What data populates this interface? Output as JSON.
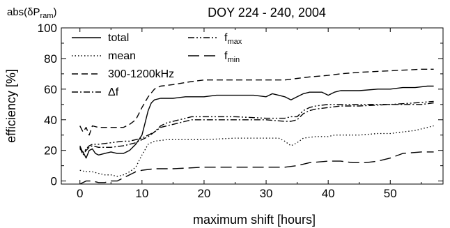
{
  "chart_data": {
    "type": "line",
    "title": "DOY 224 - 240, 2004",
    "corner_label": "abs(δP",
    "corner_label_sub": "ram",
    "corner_label_end": ")",
    "xlabel": "maximum shift [hours]",
    "ylabel": "efficiency [%]",
    "xlim": [
      -3,
      58.5
    ],
    "ylim": [
      -2,
      100
    ],
    "xticks": [
      0,
      10,
      20,
      30,
      40,
      50
    ],
    "yticks": [
      0,
      20,
      40,
      60,
      80,
      100
    ],
    "grid": false,
    "legend_position": "top-left",
    "series": [
      {
        "name": "total",
        "dash": "solid",
        "legend_label": "total",
        "legend_sub": "",
        "points": [
          [
            0,
            21
          ],
          [
            0.5,
            19
          ],
          [
            1,
            15
          ],
          [
            1.5,
            20
          ],
          [
            2,
            21
          ],
          [
            2.5,
            18
          ],
          [
            3,
            17
          ],
          [
            4,
            18
          ],
          [
            5,
            19
          ],
          [
            6,
            18
          ],
          [
            7,
            18
          ],
          [
            8,
            20
          ],
          [
            9,
            24
          ],
          [
            10,
            30
          ],
          [
            10.5,
            38
          ],
          [
            11,
            46
          ],
          [
            11.5,
            51
          ],
          [
            12,
            53
          ],
          [
            13,
            54
          ],
          [
            15,
            54
          ],
          [
            17,
            55
          ],
          [
            20,
            55
          ],
          [
            22,
            56
          ],
          [
            25,
            56
          ],
          [
            28,
            56
          ],
          [
            30,
            55
          ],
          [
            31,
            57
          ],
          [
            32,
            56
          ],
          [
            33,
            55
          ],
          [
            34,
            53
          ],
          [
            35,
            55
          ],
          [
            36,
            57
          ],
          [
            37,
            58
          ],
          [
            38,
            58
          ],
          [
            39,
            58
          ],
          [
            40,
            56
          ],
          [
            41,
            58
          ],
          [
            42,
            59
          ],
          [
            45,
            59
          ],
          [
            48,
            60
          ],
          [
            50,
            60
          ],
          [
            52,
            61
          ],
          [
            54,
            61
          ],
          [
            56,
            62
          ],
          [
            57,
            62
          ]
        ]
      },
      {
        "name": "mean",
        "dash": "dotted",
        "legend_label": "mean",
        "legend_sub": "",
        "points": [
          [
            0,
            7
          ],
          [
            1,
            6
          ],
          [
            2,
            6
          ],
          [
            3,
            5
          ],
          [
            4,
            4
          ],
          [
            5,
            4
          ],
          [
            6,
            3
          ],
          [
            7,
            4
          ],
          [
            8,
            6
          ],
          [
            9,
            9
          ],
          [
            10,
            17
          ],
          [
            11,
            24
          ],
          [
            12,
            26
          ],
          [
            14,
            27
          ],
          [
            17,
            27
          ],
          [
            20,
            27
          ],
          [
            25,
            28
          ],
          [
            30,
            28
          ],
          [
            32,
            28
          ],
          [
            33,
            26
          ],
          [
            34,
            23
          ],
          [
            35,
            25
          ],
          [
            36,
            28
          ],
          [
            38,
            29
          ],
          [
            40,
            29
          ],
          [
            41,
            30
          ],
          [
            45,
            30
          ],
          [
            48,
            31
          ],
          [
            50,
            31
          ],
          [
            52,
            32
          ],
          [
            54,
            33
          ],
          [
            56,
            35
          ],
          [
            57,
            36
          ]
        ]
      },
      {
        "name": "300-1200kHz",
        "dash": "dashed",
        "legend_label": "300-1200kHz",
        "legend_sub": "",
        "points": [
          [
            0,
            36
          ],
          [
            0.5,
            32
          ],
          [
            1,
            35
          ],
          [
            1.5,
            30
          ],
          [
            2,
            36
          ],
          [
            3,
            35
          ],
          [
            5,
            35
          ],
          [
            7,
            35
          ],
          [
            8,
            37
          ],
          [
            9,
            40
          ],
          [
            10,
            48
          ],
          [
            11,
            55
          ],
          [
            12,
            60
          ],
          [
            13,
            62
          ],
          [
            15,
            63
          ],
          [
            18,
            65
          ],
          [
            20,
            66
          ],
          [
            25,
            66
          ],
          [
            28,
            66
          ],
          [
            30,
            66
          ],
          [
            33,
            66
          ],
          [
            35,
            67
          ],
          [
            37,
            68
          ],
          [
            40,
            69
          ],
          [
            42,
            70
          ],
          [
            45,
            71
          ],
          [
            50,
            72
          ],
          [
            55,
            73
          ],
          [
            57,
            73
          ]
        ]
      },
      {
        "name": "Δf",
        "dash": "dashdot",
        "legend_label": "Δf",
        "legend_sub": "",
        "points": [
          [
            0,
            22
          ],
          [
            0.5,
            17
          ],
          [
            1,
            20
          ],
          [
            1.5,
            22
          ],
          [
            2,
            23
          ],
          [
            3,
            22
          ],
          [
            5,
            22
          ],
          [
            7,
            23
          ],
          [
            8,
            24
          ],
          [
            9,
            25
          ],
          [
            10,
            27
          ],
          [
            11,
            29
          ],
          [
            12,
            32
          ],
          [
            13,
            35
          ],
          [
            14,
            36
          ],
          [
            16,
            38
          ],
          [
            18,
            40
          ],
          [
            20,
            40
          ],
          [
            25,
            40
          ],
          [
            30,
            40
          ],
          [
            33,
            39
          ],
          [
            34,
            39
          ],
          [
            35,
            40
          ],
          [
            36,
            44
          ],
          [
            37,
            46
          ],
          [
            38,
            47
          ],
          [
            40,
            48
          ],
          [
            42,
            49
          ],
          [
            45,
            49
          ],
          [
            50,
            50
          ],
          [
            55,
            50
          ],
          [
            57,
            51
          ]
        ]
      },
      {
        "name": "f_max",
        "dash": "dashdotdot",
        "legend_label": "f",
        "legend_sub": "max",
        "points": [
          [
            0,
            23
          ],
          [
            0.5,
            18
          ],
          [
            1,
            21
          ],
          [
            1.5,
            23
          ],
          [
            2,
            24
          ],
          [
            3,
            24
          ],
          [
            5,
            25
          ],
          [
            7,
            26
          ],
          [
            8,
            26
          ],
          [
            9,
            27
          ],
          [
            10,
            28
          ],
          [
            11,
            30
          ],
          [
            12,
            32
          ],
          [
            13,
            36
          ],
          [
            14,
            38
          ],
          [
            16,
            40
          ],
          [
            18,
            42
          ],
          [
            20,
            42
          ],
          [
            25,
            42
          ],
          [
            30,
            41
          ],
          [
            33,
            41
          ],
          [
            34,
            42
          ],
          [
            35,
            42
          ],
          [
            36,
            46
          ],
          [
            37,
            48
          ],
          [
            38,
            49
          ],
          [
            40,
            50
          ],
          [
            45,
            50
          ],
          [
            50,
            50
          ],
          [
            54,
            51
          ],
          [
            57,
            52
          ]
        ]
      },
      {
        "name": "f_min",
        "dash": "longdash",
        "legend_label": "f",
        "legend_sub": "min",
        "points": [
          [
            0,
            -2
          ],
          [
            1,
            0
          ],
          [
            2,
            0
          ],
          [
            3,
            -1
          ],
          [
            4,
            -1
          ],
          [
            5,
            0
          ],
          [
            6,
            0
          ],
          [
            7,
            2
          ],
          [
            8,
            4
          ],
          [
            9,
            6
          ],
          [
            10,
            7
          ],
          [
            12,
            8
          ],
          [
            15,
            8
          ],
          [
            20,
            9
          ],
          [
            25,
            9
          ],
          [
            30,
            9
          ],
          [
            33,
            9
          ],
          [
            35,
            10
          ],
          [
            37,
            12
          ],
          [
            40,
            13
          ],
          [
            42,
            13
          ],
          [
            44,
            12
          ],
          [
            46,
            12
          ],
          [
            48,
            13
          ],
          [
            50,
            15
          ],
          [
            52,
            18
          ],
          [
            55,
            19
          ],
          [
            57,
            19
          ]
        ]
      }
    ]
  }
}
